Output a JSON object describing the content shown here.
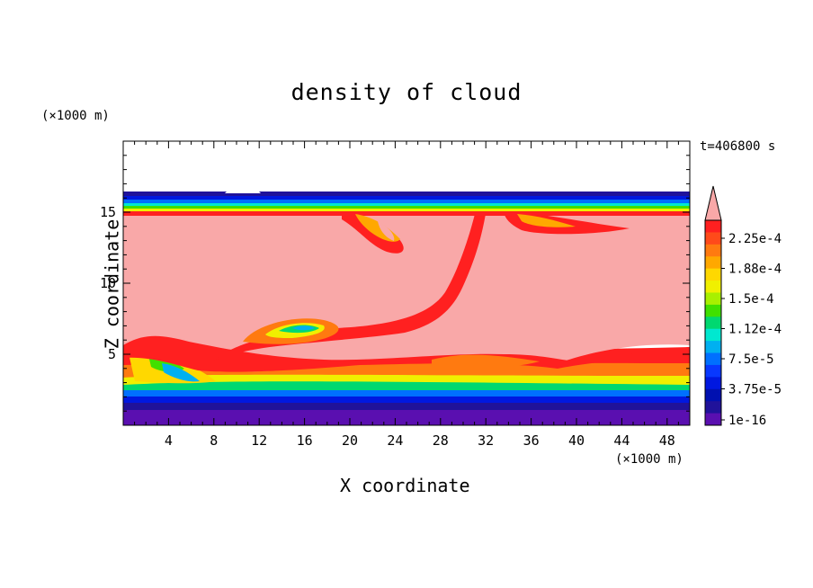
{
  "chart_data": {
    "type": "heatmap",
    "title": "density of cloud",
    "xlabel": "X coordinate",
    "ylabel": "Z coordinate",
    "x_unit": "(×1000 m)",
    "z_unit": "(×1000 m)",
    "time_label": "t=406800 s",
    "xlim": [
      0,
      50
    ],
    "ylim": [
      0,
      20
    ],
    "x_ticks": [
      4,
      8,
      12,
      16,
      20,
      24,
      28,
      32,
      36,
      40,
      44,
      48
    ],
    "y_ticks": [
      5,
      10,
      15
    ],
    "colorbar": {
      "labels": [
        "2.25e-4",
        "1.88e-4",
        "1.5e-4",
        "1.12e-4",
        "7.5e-5",
        "3.75e-5",
        "1e-16"
      ],
      "colors": [
        "#f9a8a8",
        "#ff2020",
        "#ff4a1a",
        "#ff7a10",
        "#ffa800",
        "#ffd800",
        "#f0f000",
        "#a8f000",
        "#40e000",
        "#00d870",
        "#00e8d0",
        "#00b0f0",
        "#0070ff",
        "#0838ff",
        "#0018e0",
        "#0010b0",
        "#20129a",
        "#5a0fb0"
      ],
      "extend_max_color": "#f9a8a8"
    }
  }
}
